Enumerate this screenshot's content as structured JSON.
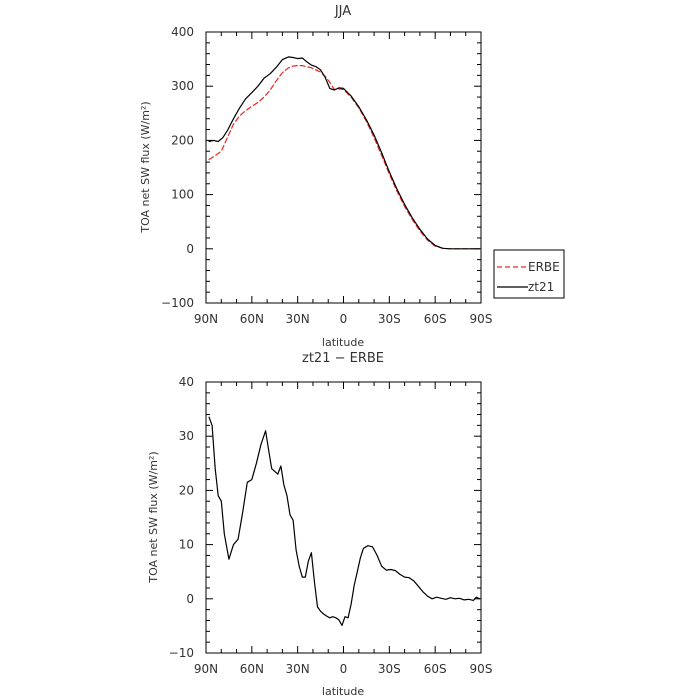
{
  "chart_data": [
    {
      "type": "line",
      "title": "JJA",
      "xlabel": "latitude",
      "ylabel": "TOA net SW flux (W/m²)",
      "xlim": [
        90,
        -90
      ],
      "ylim": [
        -100,
        400
      ],
      "xticks": [
        90,
        60,
        30,
        0,
        -30,
        -60,
        -90
      ],
      "xtick_labels": [
        "90N",
        "60N",
        "30N",
        "0",
        "30S",
        "60S",
        "90S"
      ],
      "yticks": [
        -100,
        0,
        100,
        200,
        300,
        400
      ],
      "ytick_labels": [
        "−100",
        "0",
        "100",
        "200",
        "300",
        "400"
      ],
      "legend": {
        "placement": "outside-right",
        "entries": [
          "ERBE",
          "zt21"
        ]
      },
      "grid": false,
      "series": [
        {
          "name": "ERBE",
          "color": "#e8281e",
          "style": "dashed",
          "x": [
            88,
            85,
            80,
            76,
            72,
            68,
            64,
            60,
            56,
            52,
            48,
            44,
            40,
            36,
            33,
            30,
            27,
            24,
            21,
            18,
            15,
            12,
            9,
            6,
            3,
            0,
            -5,
            -10,
            -15,
            -20,
            -25,
            -30,
            -35,
            -40,
            -45,
            -50,
            -55,
            -60,
            -65,
            -70,
            -75,
            -80,
            -85,
            -89
          ],
          "y": [
            165,
            170,
            180,
            205,
            230,
            245,
            255,
            263,
            270,
            280,
            293,
            310,
            325,
            334,
            337,
            338,
            338,
            336,
            334,
            330,
            326,
            318,
            307,
            294,
            295,
            294,
            280,
            260,
            235,
            205,
            172,
            138,
            106,
            78,
            54,
            33,
            16,
            5,
            1,
            0,
            0,
            0,
            0,
            0
          ]
        },
        {
          "name": "zt21",
          "color": "#000000",
          "style": "solid",
          "x": [
            88,
            85,
            82,
            79,
            76,
            72,
            68,
            64,
            60,
            56,
            52,
            48,
            44,
            40,
            36,
            33,
            30,
            27,
            24,
            21,
            18,
            15,
            12,
            9,
            6,
            3,
            0,
            -5,
            -10,
            -15,
            -20,
            -25,
            -30,
            -35,
            -40,
            -45,
            -50,
            -55,
            -60,
            -65,
            -70,
            -75,
            -80,
            -85,
            -89
          ],
          "y": [
            198,
            200,
            198,
            205,
            218,
            240,
            260,
            277,
            288,
            300,
            315,
            323,
            335,
            349,
            354,
            353,
            351,
            352,
            345,
            339,
            336,
            330,
            316,
            296,
            293,
            297,
            296,
            282,
            262,
            238,
            210,
            177,
            142,
            110,
            82,
            57,
            36,
            18,
            6,
            1,
            0,
            0,
            0,
            0,
            0
          ]
        }
      ]
    },
    {
      "type": "line",
      "title": "zt21 − ERBE",
      "xlabel": "latitude",
      "ylabel": "TOA net SW flux (W/m²)",
      "xlim": [
        90,
        -90
      ],
      "ylim": [
        -10,
        40
      ],
      "xticks": [
        90,
        60,
        30,
        0,
        -30,
        -60,
        -90
      ],
      "xtick_labels": [
        "90N",
        "60N",
        "30N",
        "0",
        "30S",
        "60S",
        "90S"
      ],
      "yticks": [
        -10,
        0,
        10,
        20,
        30,
        40
      ],
      "ytick_labels": [
        "−10",
        "0",
        "10",
        "20",
        "30",
        "40"
      ],
      "grid": false,
      "series": [
        {
          "color": "#000000",
          "style": "solid",
          "x": [
            88,
            86,
            84,
            82,
            80,
            78,
            75,
            72,
            69,
            66,
            63,
            60,
            57,
            54,
            51,
            49,
            47,
            45,
            43,
            41,
            39,
            37,
            35,
            33,
            31,
            29,
            27,
            25,
            23,
            21,
            19,
            17,
            15,
            13,
            11,
            9,
            7,
            5,
            3,
            1,
            -1,
            -3,
            -5,
            -7,
            -9,
            -11,
            -13,
            -16,
            -19,
            -22,
            -25,
            -28,
            -31,
            -34,
            -37,
            -40,
            -43,
            -46,
            -49,
            -52,
            -55,
            -58,
            -61,
            -64,
            -67,
            -70,
            -73,
            -76,
            -79,
            -82,
            -85,
            -87,
            -89
          ],
          "y": [
            33.5,
            32,
            24,
            19,
            18,
            12,
            7.3,
            10,
            11,
            16,
            21.5,
            22,
            25,
            28.5,
            31,
            27.5,
            24,
            23.5,
            23,
            24.5,
            21,
            19,
            15.5,
            14.5,
            9,
            6,
            4,
            4,
            7,
            8.5,
            3,
            -1.5,
            -2.3,
            -2.8,
            -3.2,
            -3.5,
            -3.3,
            -3.5,
            -3.9,
            -4.9,
            -3.3,
            -3.5,
            -1,
            2.5,
            5,
            7.5,
            9.3,
            9.8,
            9.6,
            8,
            6,
            5.3,
            5.4,
            5.2,
            4.5,
            4,
            3.9,
            3.3,
            2.3,
            1.3,
            0.5,
            0,
            0.3,
            0.1,
            -0.1,
            0.2,
            0,
            0.1,
            -0.2,
            -0.1,
            -0.3,
            0.3,
            0
          ]
        }
      ]
    }
  ]
}
